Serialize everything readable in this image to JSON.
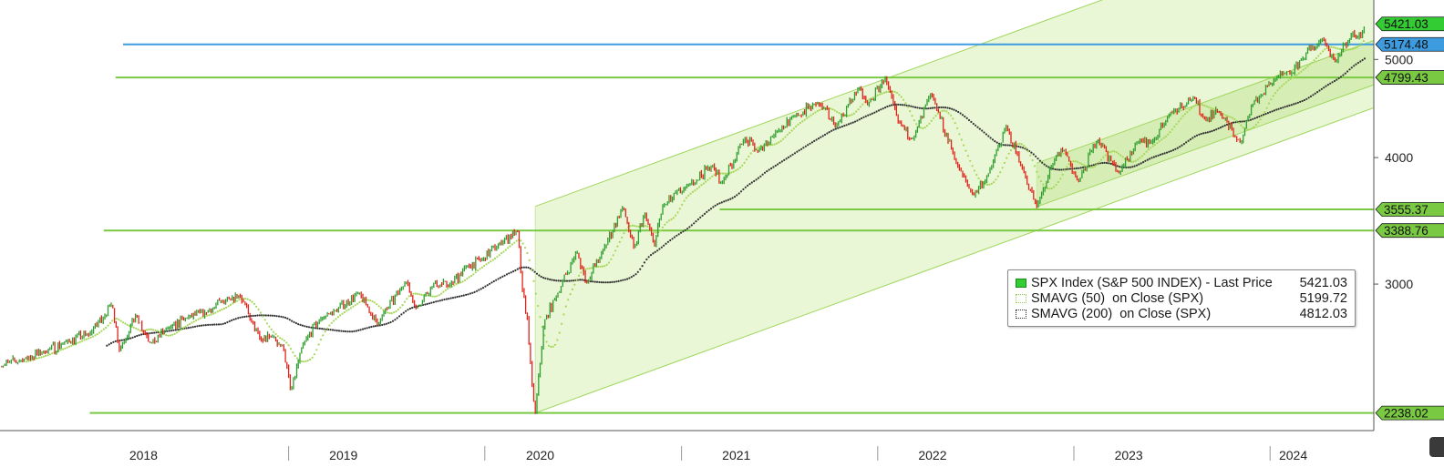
{
  "chart_data": {
    "type": "line",
    "title": "",
    "xlabel": "",
    "ylabel": "",
    "x_axis": {
      "start_date": "2017-07-01",
      "end_date": "2024-06-30",
      "year_labels": [
        "2018",
        "2019",
        "2020",
        "2021",
        "2022",
        "2023",
        "2024"
      ],
      "year_label_dates": [
        "2018-03-25",
        "2019-04-01",
        "2020-04-01",
        "2021-04-01",
        "2022-04-01",
        "2023-04-01",
        "2024-02-01"
      ],
      "year_boundaries": [
        "2018-12-20",
        "2019-12-20",
        "2020-12-20",
        "2021-12-20",
        "2022-12-20",
        "2023-12-20"
      ]
    },
    "y_axis": {
      "scale": "log",
      "ylim": [
        2150,
        5700
      ],
      "ticks": [
        3000,
        4000,
        5000
      ],
      "tick_labels": [
        "3000",
        "4000",
        "5000"
      ]
    },
    "series": [
      {
        "name": "SPX Index (S&P 500 INDEX) - Last Price",
        "legend_value": "5421.03",
        "style": "candlestick",
        "color_up": "#2e9e2e",
        "color_down": "#e0221a",
        "points": [
          [
            "2017-07-01",
            2490
          ],
          [
            "2017-08-15",
            2530
          ],
          [
            "2017-09-20",
            2570
          ],
          [
            "2017-11-01",
            2630
          ],
          [
            "2017-12-15",
            2680
          ],
          [
            "2018-01-26",
            2870
          ],
          [
            "2018-02-08",
            2580
          ],
          [
            "2018-03-10",
            2790
          ],
          [
            "2018-04-05",
            2620
          ],
          [
            "2018-05-15",
            2720
          ],
          [
            "2018-06-15",
            2780
          ],
          [
            "2018-07-20",
            2810
          ],
          [
            "2018-08-29",
            2910
          ],
          [
            "2018-09-20",
            2930
          ],
          [
            "2018-10-11",
            2760
          ],
          [
            "2018-10-29",
            2640
          ],
          [
            "2018-11-20",
            2660
          ],
          [
            "2018-12-10",
            2600
          ],
          [
            "2018-12-24",
            2350
          ],
          [
            "2019-01-15",
            2610
          ],
          [
            "2019-02-15",
            2770
          ],
          [
            "2019-03-15",
            2820
          ],
          [
            "2019-04-30",
            2940
          ],
          [
            "2019-06-03",
            2740
          ],
          [
            "2019-07-26",
            3020
          ],
          [
            "2019-08-14",
            2840
          ],
          [
            "2019-09-15",
            3000
          ],
          [
            "2019-10-15",
            2990
          ],
          [
            "2019-11-15",
            3120
          ],
          [
            "2019-12-15",
            3170
          ],
          [
            "2020-01-15",
            3290
          ],
          [
            "2020-02-19",
            3386
          ],
          [
            "2020-02-28",
            2960
          ],
          [
            "2020-03-09",
            2750
          ],
          [
            "2020-03-16",
            2400
          ],
          [
            "2020-03-23",
            2238
          ],
          [
            "2020-04-08",
            2750
          ],
          [
            "2020-04-30",
            2910
          ],
          [
            "2020-06-08",
            3230
          ],
          [
            "2020-06-26",
            3010
          ],
          [
            "2020-07-25",
            3220
          ],
          [
            "2020-09-02",
            3580
          ],
          [
            "2020-09-23",
            3240
          ],
          [
            "2020-10-12",
            3530
          ],
          [
            "2020-10-30",
            3270
          ],
          [
            "2020-11-15",
            3580
          ],
          [
            "2020-12-31",
            3750
          ],
          [
            "2021-02-15",
            3930
          ],
          [
            "2021-03-04",
            3770
          ],
          [
            "2021-04-15",
            4170
          ],
          [
            "2021-05-12",
            4060
          ],
          [
            "2021-06-15",
            4250
          ],
          [
            "2021-07-15",
            4380
          ],
          [
            "2021-08-30",
            4530
          ],
          [
            "2021-10-04",
            4300
          ],
          [
            "2021-11-15",
            4690
          ],
          [
            "2021-12-01",
            4510
          ],
          [
            "2022-01-03",
            4790
          ],
          [
            "2022-01-27",
            4330
          ],
          [
            "2022-02-24",
            4170
          ],
          [
            "2022-03-29",
            4630
          ],
          [
            "2022-05-20",
            3900
          ],
          [
            "2022-06-16",
            3666
          ],
          [
            "2022-07-15",
            3860
          ],
          [
            "2022-08-16",
            4300
          ],
          [
            "2022-09-15",
            3900
          ],
          [
            "2022-10-12",
            3577
          ],
          [
            "2022-11-15",
            3990
          ],
          [
            "2022-12-01",
            4080
          ],
          [
            "2022-12-28",
            3780
          ],
          [
            "2023-02-02",
            4180
          ],
          [
            "2023-03-13",
            3860
          ],
          [
            "2023-04-15",
            4130
          ],
          [
            "2023-05-15",
            4150
          ],
          [
            "2023-06-15",
            4420
          ],
          [
            "2023-07-31",
            4590
          ],
          [
            "2023-08-18",
            4370
          ],
          [
            "2023-09-15",
            4450
          ],
          [
            "2023-10-27",
            4120
          ],
          [
            "2023-11-15",
            4500
          ],
          [
            "2023-12-28",
            4780
          ],
          [
            "2024-01-31",
            4850
          ],
          [
            "2024-02-15",
            5000
          ],
          [
            "2024-03-28",
            5250
          ],
          [
            "2024-04-19",
            4970
          ],
          [
            "2024-05-20",
            5300
          ],
          [
            "2024-05-31",
            5250
          ],
          [
            "2024-06-14",
            5421
          ]
        ]
      },
      {
        "name": "SMAVG (50)  on Close (SPX)",
        "legend_value": "5199.72",
        "style": "dotted",
        "color": "#a6d75a"
      },
      {
        "name": "SMAVG (200)  on Close (SPX)",
        "legend_value": "4812.03",
        "style": "dotted",
        "color": "#333333"
      }
    ],
    "horizontal_lines": [
      {
        "value": 5421.03,
        "label": "5421.03",
        "color": "#33cc33",
        "line": false
      },
      {
        "value": 5174.48,
        "label": "5174.48",
        "color": "#3d9be0",
        "line": true,
        "start_date": "2018-02-15"
      },
      {
        "value": 4799.43,
        "label": "4799.43",
        "color": "#7ac943",
        "line": true,
        "start_date": "2018-02-01"
      },
      {
        "value": 3555.37,
        "label": "3555.37",
        "color": "#7ac943",
        "line": true,
        "start_date": "2021-03-01"
      },
      {
        "value": 3388.76,
        "label": "3388.76",
        "color": "#7ac943",
        "line": true,
        "start_date": "2018-01-10"
      },
      {
        "value": 2238.02,
        "label": "2238.02",
        "color": "#7ac943",
        "line": true,
        "start_date": "2017-12-15"
      }
    ],
    "trend_channels": [
      {
        "color": "#d8f0b4",
        "lower": [
          [
            "2020-03-23",
            2238
          ],
          [
            "2024-06-30",
            4480
          ]
        ],
        "upper": [
          [
            "2020-03-23",
            3580
          ],
          [
            "2024-06-30",
            7170
          ]
        ]
      },
      {
        "color": "#c5e89a",
        "lower": [
          [
            "2022-10-12",
            3577
          ],
          [
            "2024-06-30",
            4720
          ]
        ],
        "upper": [
          [
            "2022-10-12",
            3950
          ],
          [
            "2024-06-30",
            5220
          ]
        ]
      }
    ],
    "legend": {
      "placement": "bottom-right",
      "entries": [
        {
          "name": "SPX Index (S&P 500 INDEX) - Last Price",
          "value": "5421.03"
        },
        {
          "name": "SMAVG (50)  on Close (SPX)",
          "value": "5199.72"
        },
        {
          "name": "SMAVG (200)  on Close (SPX)",
          "value": "4812.03"
        }
      ]
    },
    "grid": false
  }
}
